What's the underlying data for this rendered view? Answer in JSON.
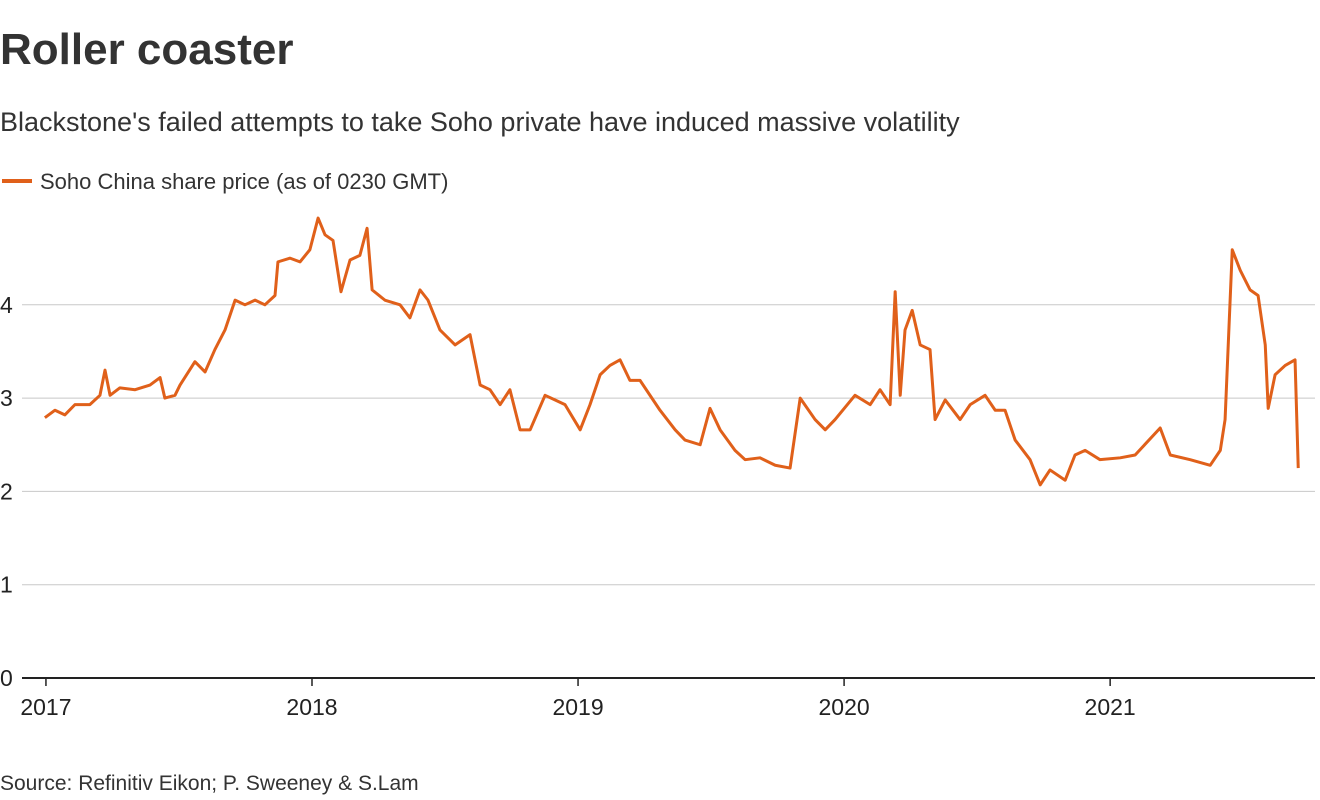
{
  "chart_data": {
    "type": "line",
    "title": "Roller coaster",
    "subtitle": "Blackstone's failed attempts to take Soho private have induced massive volatility",
    "source": "Source: Refinitiv Eikon; P. Sweeney & S.Lam",
    "x": [
      2016.996,
      2017.034,
      2017.071,
      2017.109,
      2017.165,
      2017.203,
      2017.222,
      2017.241,
      2017.278,
      2017.335,
      2017.391,
      2017.429,
      2017.447,
      2017.485,
      2017.504,
      2017.56,
      2017.598,
      2017.635,
      2017.673,
      2017.711,
      2017.748,
      2017.786,
      2017.823,
      2017.861,
      2017.872,
      2017.917,
      2017.955,
      2017.992,
      2018.023,
      2018.049,
      2018.079,
      2018.109,
      2018.143,
      2018.18,
      2018.207,
      2018.226,
      2018.274,
      2018.331,
      2018.368,
      2018.406,
      2018.436,
      2018.481,
      2018.538,
      2018.594,
      2018.632,
      2018.669,
      2018.707,
      2018.744,
      2018.782,
      2018.82,
      2018.876,
      2018.914,
      2018.951,
      2019.008,
      2019.045,
      2019.083,
      2019.12,
      2019.158,
      2019.195,
      2019.233,
      2019.308,
      2019.365,
      2019.402,
      2019.459,
      2019.496,
      2019.534,
      2019.59,
      2019.628,
      2019.684,
      2019.741,
      2019.797,
      2019.835,
      2019.891,
      2019.929,
      2019.966,
      2020.041,
      2020.098,
      2020.135,
      2020.173,
      2020.192,
      2020.211,
      2020.229,
      2020.256,
      2020.286,
      2020.323,
      2020.342,
      2020.38,
      2020.436,
      2020.474,
      2020.53,
      2020.568,
      2020.605,
      2020.643,
      2020.699,
      2020.737,
      2020.774,
      2020.831,
      2020.868,
      2020.906,
      2020.962,
      2021.038,
      2021.094,
      2021.188,
      2021.226,
      2021.301,
      2021.376,
      2021.414,
      2021.432,
      2021.459,
      2021.489,
      2021.526,
      2021.556,
      2021.583,
      2021.594,
      2021.62,
      2021.658,
      2021.695,
      2021.707
    ],
    "series": [
      {
        "name": "Soho China share price (as of 0230 GMT)",
        "color": "#e0601a",
        "values": [
          2.79,
          2.87,
          2.82,
          2.93,
          2.93,
          3.03,
          3.3,
          3.03,
          3.11,
          3.09,
          3.14,
          3.22,
          3.0,
          3.03,
          3.14,
          3.39,
          3.28,
          3.52,
          3.73,
          4.05,
          4.0,
          4.05,
          4.0,
          4.1,
          4.46,
          4.5,
          4.46,
          4.59,
          4.93,
          4.75,
          4.69,
          4.14,
          4.48,
          4.53,
          4.82,
          4.16,
          4.05,
          4.0,
          3.86,
          4.16,
          4.05,
          3.73,
          3.57,
          3.68,
          3.14,
          3.09,
          2.93,
          3.09,
          2.66,
          2.66,
          3.03,
          2.98,
          2.93,
          2.66,
          2.93,
          3.25,
          3.35,
          3.41,
          3.19,
          3.19,
          2.87,
          2.66,
          2.55,
          2.5,
          2.89,
          2.66,
          2.44,
          2.34,
          2.36,
          2.28,
          2.25,
          3.0,
          2.77,
          2.66,
          2.77,
          3.03,
          2.93,
          3.09,
          2.93,
          4.14,
          3.03,
          3.73,
          3.94,
          3.57,
          3.52,
          2.77,
          2.98,
          2.77,
          2.93,
          3.03,
          2.87,
          2.87,
          2.55,
          2.34,
          2.07,
          2.23,
          2.12,
          2.39,
          2.44,
          2.34,
          2.36,
          2.39,
          2.68,
          2.39,
          2.34,
          2.28,
          2.44,
          2.77,
          4.59,
          4.37,
          4.16,
          4.1,
          3.57,
          2.89,
          3.25,
          3.35,
          3.41,
          2.25
        ]
      }
    ],
    "xlim": [
      2016.91,
      2021.77
    ],
    "xticks": [
      2017,
      2018,
      2019,
      2020,
      2021
    ],
    "ylim": [
      0,
      5
    ],
    "yticks": [
      0,
      1,
      2,
      3,
      4
    ],
    "grid": true
  }
}
